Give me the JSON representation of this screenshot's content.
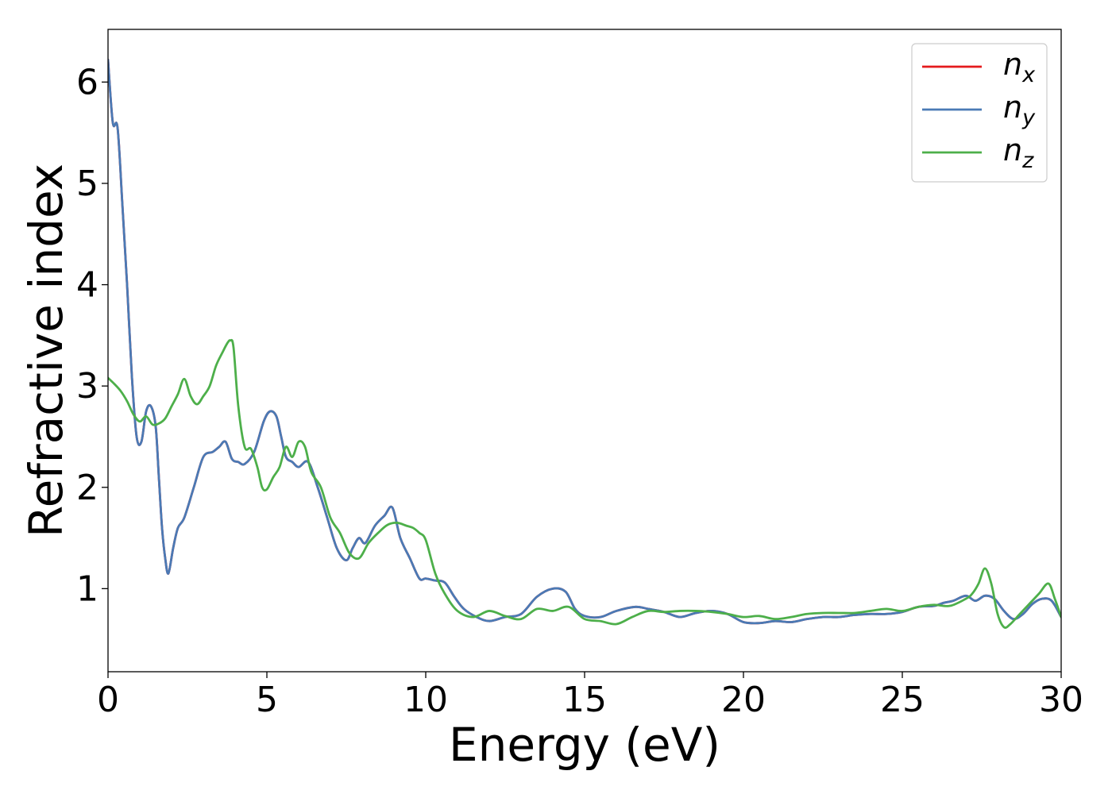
{
  "chart_data": {
    "type": "line",
    "xlabel": "Energy (eV)",
    "ylabel": "Refractive index",
    "xlim": [
      0,
      30
    ],
    "ylim": [
      0.18,
      6.52
    ],
    "xticks": [
      0,
      5,
      10,
      15,
      20,
      25,
      30
    ],
    "yticks": [
      1,
      2,
      3,
      4,
      5,
      6
    ],
    "grid": false,
    "legend_position": "top-right",
    "series": [
      {
        "name": "n_x",
        "label_main": "n",
        "label_sub": "x",
        "color": "#e41a1c",
        "x": [
          0,
          0.15,
          0.3,
          0.45,
          0.6,
          0.75,
          0.9,
          1.05,
          1.2,
          1.35,
          1.5,
          1.6,
          1.7,
          1.8,
          1.9,
          2.05,
          2.2,
          2.4,
          2.7,
          3.0,
          3.3,
          3.5,
          3.7,
          3.9,
          4.1,
          4.3,
          4.6,
          4.9,
          5.1,
          5.3,
          5.45,
          5.6,
          5.8,
          6.0,
          6.3,
          6.6,
          6.9,
          7.2,
          7.5,
          7.7,
          7.9,
          8.1,
          8.4,
          8.7,
          8.95,
          9.2,
          9.5,
          9.8,
          10.0,
          10.3,
          10.6,
          10.9,
          11.2,
          11.6,
          12.0,
          12.5,
          13.0,
          13.5,
          14.0,
          14.4,
          14.7,
          15.0,
          15.5,
          16.0,
          16.6,
          17.0,
          17.5,
          18.0,
          18.5,
          19.0,
          19.5,
          20.0,
          20.5,
          21.0,
          21.5,
          22.0,
          22.5,
          23.0,
          23.5,
          24.0,
          24.5,
          25.0,
          25.5,
          26.0,
          26.3,
          26.6,
          27.0,
          27.3,
          27.6,
          27.9,
          28.2,
          28.5,
          28.8,
          29.1,
          29.4,
          29.7,
          30.0
        ],
        "values": [
          6.22,
          5.6,
          5.55,
          4.8,
          4.0,
          3.1,
          2.5,
          2.45,
          2.75,
          2.8,
          2.6,
          2.1,
          1.6,
          1.3,
          1.15,
          1.4,
          1.6,
          1.7,
          2.0,
          2.3,
          2.35,
          2.4,
          2.45,
          2.28,
          2.25,
          2.23,
          2.35,
          2.65,
          2.75,
          2.7,
          2.5,
          2.3,
          2.25,
          2.2,
          2.25,
          2.0,
          1.7,
          1.4,
          1.28,
          1.4,
          1.5,
          1.45,
          1.62,
          1.72,
          1.8,
          1.5,
          1.3,
          1.1,
          1.1,
          1.08,
          1.06,
          0.92,
          0.8,
          0.72,
          0.68,
          0.72,
          0.75,
          0.92,
          1.0,
          0.97,
          0.8,
          0.73,
          0.72,
          0.78,
          0.82,
          0.8,
          0.77,
          0.72,
          0.76,
          0.78,
          0.75,
          0.67,
          0.66,
          0.68,
          0.67,
          0.7,
          0.72,
          0.72,
          0.74,
          0.75,
          0.75,
          0.77,
          0.82,
          0.83,
          0.86,
          0.88,
          0.93,
          0.88,
          0.93,
          0.9,
          0.78,
          0.7,
          0.75,
          0.85,
          0.9,
          0.88,
          0.72
        ]
      },
      {
        "name": "n_y",
        "label_main": "n",
        "label_sub": "y",
        "color": "#4a7ab5",
        "x": [
          0,
          0.15,
          0.3,
          0.45,
          0.6,
          0.75,
          0.9,
          1.05,
          1.2,
          1.35,
          1.5,
          1.6,
          1.7,
          1.8,
          1.9,
          2.05,
          2.2,
          2.4,
          2.7,
          3.0,
          3.3,
          3.5,
          3.7,
          3.9,
          4.1,
          4.3,
          4.6,
          4.9,
          5.1,
          5.3,
          5.45,
          5.6,
          5.8,
          6.0,
          6.3,
          6.6,
          6.9,
          7.2,
          7.5,
          7.7,
          7.9,
          8.1,
          8.4,
          8.7,
          8.95,
          9.2,
          9.5,
          9.8,
          10.0,
          10.3,
          10.6,
          10.9,
          11.2,
          11.6,
          12.0,
          12.5,
          13.0,
          13.5,
          14.0,
          14.4,
          14.7,
          15.0,
          15.5,
          16.0,
          16.6,
          17.0,
          17.5,
          18.0,
          18.5,
          19.0,
          19.5,
          20.0,
          20.5,
          21.0,
          21.5,
          22.0,
          22.5,
          23.0,
          23.5,
          24.0,
          24.5,
          25.0,
          25.5,
          26.0,
          26.3,
          26.6,
          27.0,
          27.3,
          27.6,
          27.9,
          28.2,
          28.5,
          28.8,
          29.1,
          29.4,
          29.7,
          30.0
        ],
        "values": [
          6.22,
          5.6,
          5.55,
          4.8,
          4.0,
          3.1,
          2.5,
          2.45,
          2.75,
          2.8,
          2.6,
          2.1,
          1.6,
          1.3,
          1.15,
          1.4,
          1.6,
          1.7,
          2.0,
          2.3,
          2.35,
          2.4,
          2.45,
          2.28,
          2.25,
          2.23,
          2.35,
          2.65,
          2.75,
          2.7,
          2.5,
          2.3,
          2.25,
          2.2,
          2.25,
          2.0,
          1.7,
          1.4,
          1.28,
          1.4,
          1.5,
          1.45,
          1.62,
          1.72,
          1.8,
          1.5,
          1.3,
          1.1,
          1.1,
          1.08,
          1.06,
          0.92,
          0.8,
          0.72,
          0.68,
          0.72,
          0.75,
          0.92,
          1.0,
          0.97,
          0.8,
          0.73,
          0.72,
          0.78,
          0.82,
          0.8,
          0.77,
          0.72,
          0.76,
          0.78,
          0.75,
          0.67,
          0.66,
          0.68,
          0.67,
          0.7,
          0.72,
          0.72,
          0.74,
          0.75,
          0.75,
          0.77,
          0.82,
          0.83,
          0.86,
          0.88,
          0.93,
          0.88,
          0.93,
          0.9,
          0.78,
          0.7,
          0.75,
          0.85,
          0.9,
          0.88,
          0.72
        ]
      },
      {
        "name": "n_z",
        "label_main": "n",
        "label_sub": "z",
        "color": "#4daf4a",
        "x": [
          0,
          0.2,
          0.4,
          0.6,
          0.8,
          1.0,
          1.2,
          1.4,
          1.6,
          1.8,
          2.0,
          2.2,
          2.4,
          2.6,
          2.8,
          3.0,
          3.2,
          3.4,
          3.6,
          3.75,
          3.85,
          3.95,
          4.1,
          4.3,
          4.5,
          4.7,
          4.85,
          5.0,
          5.2,
          5.4,
          5.6,
          5.8,
          6.0,
          6.2,
          6.4,
          6.7,
          7.0,
          7.3,
          7.6,
          7.9,
          8.2,
          8.5,
          8.8,
          9.1,
          9.4,
          9.6,
          9.8,
          10.0,
          10.3,
          10.6,
          11.0,
          11.5,
          12.0,
          12.5,
          13.0,
          13.5,
          14.0,
          14.5,
          15.0,
          15.5,
          16.0,
          16.5,
          17.0,
          17.5,
          18.0,
          18.5,
          19.0,
          19.5,
          20.0,
          20.5,
          21.0,
          21.5,
          22.0,
          22.5,
          23.0,
          23.5,
          24.0,
          24.5,
          25.0,
          25.5,
          26.0,
          26.5,
          27.0,
          27.2,
          27.4,
          27.6,
          27.8,
          28.0,
          28.2,
          28.4,
          28.7,
          29.0,
          29.3,
          29.6,
          29.8,
          30.0
        ],
        "values": [
          3.08,
          3.02,
          2.95,
          2.85,
          2.72,
          2.65,
          2.7,
          2.62,
          2.63,
          2.68,
          2.8,
          2.92,
          3.07,
          2.9,
          2.82,
          2.9,
          3.0,
          3.2,
          3.33,
          3.42,
          3.45,
          3.38,
          2.8,
          2.4,
          2.38,
          2.2,
          2.0,
          1.98,
          2.1,
          2.2,
          2.4,
          2.3,
          2.45,
          2.4,
          2.15,
          2.0,
          1.7,
          1.55,
          1.35,
          1.3,
          1.45,
          1.55,
          1.63,
          1.65,
          1.62,
          1.6,
          1.55,
          1.48,
          1.15,
          0.95,
          0.78,
          0.72,
          0.78,
          0.73,
          0.7,
          0.8,
          0.78,
          0.82,
          0.7,
          0.68,
          0.65,
          0.72,
          0.78,
          0.77,
          0.78,
          0.78,
          0.77,
          0.75,
          0.72,
          0.73,
          0.7,
          0.72,
          0.75,
          0.76,
          0.76,
          0.76,
          0.78,
          0.8,
          0.78,
          0.82,
          0.84,
          0.83,
          0.9,
          0.95,
          1.05,
          1.2,
          1.05,
          0.75,
          0.62,
          0.65,
          0.75,
          0.85,
          0.95,
          1.05,
          0.9,
          0.72
        ]
      }
    ]
  }
}
